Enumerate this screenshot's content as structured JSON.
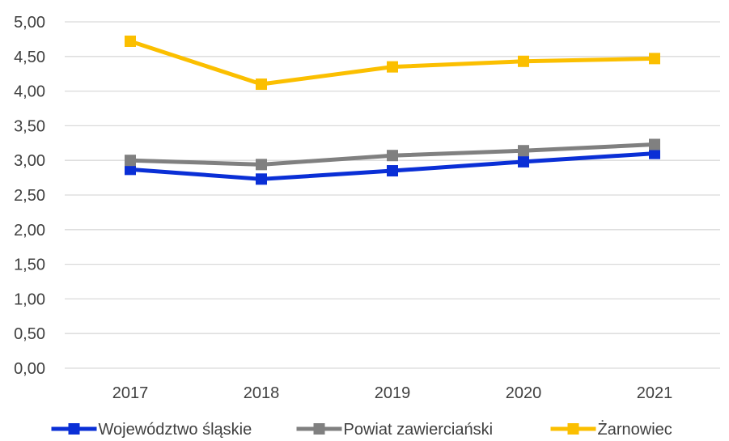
{
  "chart_data": {
    "type": "line",
    "categories": [
      "2017",
      "2018",
      "2019",
      "2020",
      "2021"
    ],
    "y_ticks": [
      "0,00",
      "0,50",
      "1,00",
      "1,50",
      "2,00",
      "2,50",
      "3,00",
      "3,50",
      "4,00",
      "4,50",
      "5,00"
    ],
    "ylim": [
      0,
      5
    ],
    "grid": true,
    "legend_position": "bottom",
    "series": [
      {
        "name": "Województwo śląskie",
        "color": "#0a2fd6",
        "values": [
          2.87,
          2.73,
          2.85,
          2.98,
          3.1
        ]
      },
      {
        "name": "Powiat zawierciański",
        "color": "#808080",
        "values": [
          3.0,
          2.94,
          3.07,
          3.14,
          3.23
        ]
      },
      {
        "name": "Żarnowiec",
        "color": "#fbbf00",
        "values": [
          4.72,
          4.1,
          4.35,
          4.43,
          4.47
        ]
      }
    ]
  }
}
